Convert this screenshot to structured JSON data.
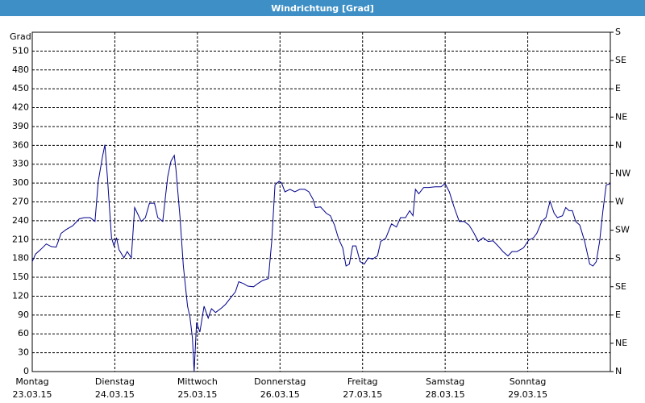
{
  "chart_data": {
    "type": "line",
    "title": "Windrichtung [Grad]",
    "ylabel": "Grad",
    "xlim": [
      0,
      7
    ],
    "xticks": [
      {
        "value": 0,
        "label": "Montag"
      },
      {
        "value": 1,
        "label": "Dienstag"
      },
      {
        "value": 2,
        "label": "Mittwoch"
      },
      {
        "value": 3,
        "label": "Donnerstag"
      },
      {
        "value": 4,
        "label": "Freitag"
      },
      {
        "value": 5,
        "label": "Samstag"
      },
      {
        "value": 6,
        "label": "Sonntag"
      }
    ],
    "xtick_dates": [
      "23.03.15",
      "24.03.15",
      "25.03.15",
      "26.03.15",
      "27.03.15",
      "28.03.15",
      "29.03.15"
    ],
    "ylim": [
      0,
      540
    ],
    "yticks": [
      0,
      30,
      60,
      90,
      120,
      150,
      180,
      210,
      240,
      270,
      300,
      330,
      360,
      390,
      420,
      450,
      480,
      510
    ],
    "y2lim": [
      0,
      540
    ],
    "y2ticks": [
      {
        "value": 0,
        "label": "N"
      },
      {
        "value": 45,
        "label": "NE"
      },
      {
        "value": 90,
        "label": "E"
      },
      {
        "value": 135,
        "label": "SE"
      },
      {
        "value": 180,
        "label": "S"
      },
      {
        "value": 225,
        "label": "SW"
      },
      {
        "value": 270,
        "label": "W"
      },
      {
        "value": 315,
        "label": "NW"
      },
      {
        "value": 360,
        "label": "N"
      },
      {
        "value": 405,
        "label": "NE"
      },
      {
        "value": 450,
        "label": "E"
      },
      {
        "value": 495,
        "label": "SE"
      },
      {
        "value": 540,
        "label": "S"
      }
    ],
    "grid": true,
    "x": [
      0,
      0.04,
      0.1,
      0.17,
      0.23,
      0.29,
      0.35,
      0.41,
      0.49,
      0.57,
      0.63,
      0.7,
      0.76,
      0.8,
      0.85,
      0.88,
      0.91,
      0.96,
      0.99,
      1.02,
      1.05,
      1.11,
      1.15,
      1.2,
      1.24,
      1.32,
      1.37,
      1.42,
      1.48,
      1.52,
      1.58,
      1.64,
      1.68,
      1.72,
      1.74,
      1.79,
      1.83,
      1.88,
      1.91,
      1.94,
      1.96,
      1.99,
      2.03,
      2.08,
      2.13,
      2.17,
      2.22,
      2.29,
      2.34,
      2.4,
      2.46,
      2.5,
      2.56,
      2.61,
      2.68,
      2.73,
      2.79,
      2.86,
      2.9,
      2.94,
      2.99,
      3.02,
      3.06,
      3.12,
      3.18,
      3.24,
      3.3,
      3.35,
      3.4,
      3.43,
      3.49,
      3.56,
      3.61,
      3.66,
      3.71,
      3.76,
      3.8,
      3.84,
      3.88,
      3.92,
      3.97,
      4.02,
      4.07,
      4.12,
      4.18,
      4.22,
      4.28,
      4.35,
      4.41,
      4.46,
      4.52,
      4.57,
      4.61,
      4.64,
      4.68,
      4.74,
      4.8,
      4.88,
      4.95,
      5.0,
      5.05,
      5.11,
      5.17,
      5.23,
      5.29,
      5.35,
      5.4,
      5.46,
      5.52,
      5.58,
      5.64,
      5.7,
      5.76,
      5.81,
      5.87,
      5.95,
      6.01,
      6.07,
      6.11,
      6.17,
      6.22,
      6.27,
      6.32,
      6.36,
      6.42,
      6.46,
      6.5,
      6.54,
      6.58,
      6.63,
      6.69,
      6.75,
      6.79,
      6.83,
      6.87,
      6.91,
      6.95,
      7.0
    ],
    "series": [
      {
        "color": "#00008b",
        "values": [
          175,
          187,
          194,
          203,
          199,
          198,
          220,
          226,
          232,
          243,
          245,
          245,
          239,
          303,
          342,
          361,
          310,
          213,
          200,
          213,
          194,
          181,
          191,
          181,
          261,
          239,
          245,
          268,
          268,
          245,
          239,
          310,
          335,
          344,
          322,
          245,
          168,
          104,
          87,
          53,
          0,
          78,
          63,
          104,
          85,
          100,
          94,
          101,
          107,
          117,
          127,
          143,
          140,
          136,
          135,
          140,
          145,
          148,
          207,
          297,
          303,
          300,
          286,
          290,
          286,
          290,
          290,
          286,
          274,
          261,
          262,
          252,
          248,
          233,
          211,
          197,
          168,
          171,
          200,
          200,
          175,
          171,
          181,
          179,
          184,
          207,
          212,
          235,
          230,
          245,
          245,
          256,
          248,
          290,
          283,
          293,
          293,
          294,
          294,
          299,
          286,
          261,
          239,
          239,
          233,
          220,
          207,
          213,
          207,
          208,
          200,
          191,
          184,
          191,
          191,
          197,
          209,
          213,
          220,
          239,
          245,
          271,
          252,
          245,
          248,
          261,
          256,
          256,
          239,
          233,
          207,
          171,
          168,
          175,
          207,
          256,
          297,
          299
        ]
      }
    ]
  }
}
